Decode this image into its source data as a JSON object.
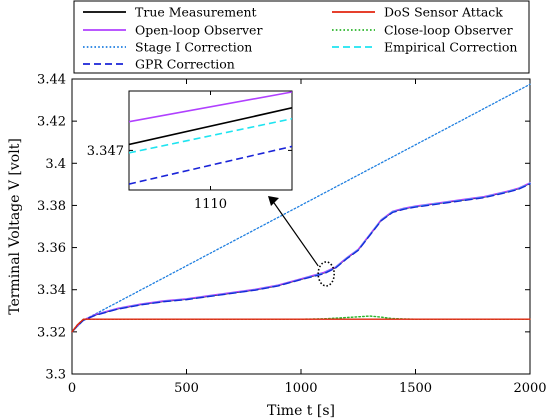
{
  "chart_data": {
    "type": "line",
    "xlabel": "Time t [s]",
    "ylabel": "Terminal Voltage V [volt]",
    "xlim": [
      0,
      2000
    ],
    "ylim": [
      3.3,
      3.44
    ],
    "xticks": [
      "0",
      "500",
      "1000",
      "1500",
      "2000"
    ],
    "yticks": [
      "3.3",
      "3.32",
      "3.34",
      "3.36",
      "3.38",
      "3.4",
      "3.42",
      "3.44"
    ],
    "grid": false,
    "legend_position": "top",
    "series": [
      {
        "name": "True Measurement",
        "color": "#000000",
        "style": "solid",
        "x": [
          0,
          25,
          50,
          100,
          200,
          300,
          400,
          500,
          600,
          700,
          800,
          900,
          1000,
          1050,
          1100,
          1150,
          1200,
          1250,
          1300,
          1350,
          1400,
          1450,
          1500,
          1600,
          1700,
          1800,
          1900,
          1950,
          2000
        ],
        "y": [
          3.32,
          3.323,
          3.3255,
          3.328,
          3.331,
          3.333,
          3.3345,
          3.3355,
          3.337,
          3.3385,
          3.34,
          3.342,
          3.345,
          3.3465,
          3.348,
          3.3505,
          3.355,
          3.359,
          3.366,
          3.373,
          3.377,
          3.3785,
          3.3795,
          3.381,
          3.3825,
          3.384,
          3.3865,
          3.388,
          3.3905
        ]
      },
      {
        "name": "DoS Sensor Attack",
        "color": "#e2240f",
        "style": "solid",
        "x": [
          0,
          25,
          50,
          100,
          500,
          1000,
          1500,
          2000
        ],
        "y": [
          3.32,
          3.3235,
          3.326,
          3.326,
          3.326,
          3.326,
          3.326,
          3.326
        ]
      },
      {
        "name": "Open-loop Observer",
        "color": "#b040ff",
        "style": "solid",
        "x": [
          0,
          25,
          50,
          100,
          200,
          300,
          400,
          500,
          600,
          700,
          800,
          900,
          1000,
          1050,
          1100,
          1150,
          1200,
          1250,
          1300,
          1350,
          1400,
          1450,
          1500,
          1600,
          1700,
          1800,
          1900,
          1950,
          2000
        ],
        "y": [
          3.32,
          3.323,
          3.3255,
          3.3282,
          3.3312,
          3.3332,
          3.3347,
          3.3357,
          3.3372,
          3.3387,
          3.3402,
          3.3422,
          3.3452,
          3.3467,
          3.3482,
          3.3507,
          3.3552,
          3.3592,
          3.3662,
          3.3732,
          3.3772,
          3.3787,
          3.3797,
          3.3812,
          3.3827,
          3.3842,
          3.3867,
          3.3882,
          3.3907
        ]
      },
      {
        "name": "Close-loop Observer",
        "color": "#2bb52b",
        "style": "dotted",
        "x": [
          0,
          25,
          50,
          100,
          500,
          1000,
          1100,
          1200,
          1300,
          1350,
          1400,
          1500,
          2000
        ],
        "y": [
          3.32,
          3.3235,
          3.326,
          3.326,
          3.326,
          3.326,
          3.3262,
          3.3268,
          3.3275,
          3.327,
          3.3263,
          3.326,
          3.326
        ]
      },
      {
        "name": "Stage I Correction",
        "color": "#1f7fe0",
        "style": "dotted",
        "x": [
          0,
          50,
          2000
        ],
        "y": [
          3.32,
          3.3255,
          3.4375
        ]
      },
      {
        "name": "Empirical Correction",
        "color": "#1fe4f0",
        "style": "dashed",
        "x": [
          0,
          25,
          50,
          100,
          200,
          300,
          400,
          500,
          600,
          700,
          800,
          900,
          1000,
          1050,
          1100,
          1150,
          1200,
          1250,
          1300,
          1350,
          1400,
          1450,
          1500,
          1600,
          1700,
          1800,
          1900,
          1950,
          2000
        ],
        "y": [
          3.32,
          3.323,
          3.3255,
          3.3279,
          3.3309,
          3.3329,
          3.3344,
          3.3354,
          3.3369,
          3.3384,
          3.3399,
          3.3419,
          3.3449,
          3.3464,
          3.3478,
          3.3504,
          3.3549,
          3.3589,
          3.3659,
          3.3729,
          3.3769,
          3.3784,
          3.3794,
          3.3809,
          3.3824,
          3.3839,
          3.3864,
          3.3879,
          3.3904
        ]
      },
      {
        "name": "GPR Correction",
        "color": "#1a24d8",
        "style": "dashed",
        "x": [
          0,
          25,
          50,
          100,
          200,
          300,
          400,
          500,
          600,
          700,
          800,
          900,
          1000,
          1050,
          1100,
          1150,
          1200,
          1250,
          1300,
          1350,
          1400,
          1450,
          1500,
          1600,
          1700,
          1800,
          1900,
          1950,
          2000
        ],
        "y": [
          3.32,
          3.323,
          3.3255,
          3.3278,
          3.3308,
          3.3328,
          3.3343,
          3.3353,
          3.3368,
          3.3383,
          3.3398,
          3.3418,
          3.3448,
          3.3462,
          3.3476,
          3.3502,
          3.3547,
          3.3587,
          3.3657,
          3.3727,
          3.3767,
          3.3782,
          3.3792,
          3.3807,
          3.3822,
          3.3837,
          3.3862,
          3.3877,
          3.3902
        ]
      }
    ],
    "legend": [
      {
        "label": "True Measurement",
        "color": "#000000",
        "style": "solid"
      },
      {
        "label": "DoS Sensor Attack",
        "color": "#e2240f",
        "style": "solid"
      },
      {
        "label": "Open-loop Observer",
        "color": "#b040ff",
        "style": "solid"
      },
      {
        "label": "Close-loop Observer",
        "color": "#2bb52b",
        "style": "dotted"
      },
      {
        "label": "Stage I Correction",
        "color": "#1f7fe0",
        "style": "dotted"
      },
      {
        "label": "Empirical Correction",
        "color": "#1fe4f0",
        "style": "dashed"
      },
      {
        "label": "GPR Correction",
        "color": "#1a24d8",
        "style": "dashed"
      }
    ],
    "inset": {
      "xlim": [
        1100,
        1120
      ],
      "ylim": [
        3.3462,
        3.3482
      ],
      "xtick_label": "1110",
      "ytick_label": "3.347",
      "xtick": 1110,
      "ytick": 3.347,
      "series": [
        {
          "name": "Open-loop Observer",
          "color": "#b040ff",
          "style": "solid",
          "x": [
            1100,
            1120
          ],
          "y": [
            3.34758,
            3.34818
          ]
        },
        {
          "name": "True Measurement",
          "color": "#000000",
          "style": "solid",
          "x": [
            1100,
            1120
          ],
          "y": [
            3.34712,
            3.34786
          ]
        },
        {
          "name": "Empirical Correction",
          "color": "#1fe4f0",
          "style": "dashed",
          "x": [
            1100,
            1120
          ],
          "y": [
            3.34695,
            3.34764
          ]
        },
        {
          "name": "GPR Correction",
          "color": "#1a24d8",
          "style": "dashed",
          "x": [
            1100,
            1120
          ],
          "y": [
            3.34632,
            3.34708
          ]
        }
      ]
    },
    "annotation": {
      "ellipse_center": [
        1110,
        3.3475
      ],
      "description_marker": "dotted ellipse with arrow to inset"
    }
  }
}
